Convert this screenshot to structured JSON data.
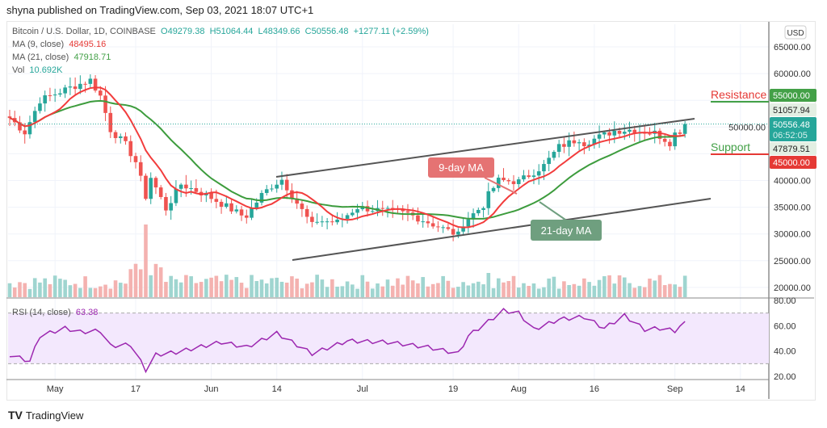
{
  "header": {
    "published": "shyna published on TradingView.com, Sep 03, 2021 18:07 UTC+1"
  },
  "legend": {
    "symbol": "Bitcoin / U.S. Dollar, 1D, COINBASE",
    "open": "O49279.38",
    "high": "H51064.44",
    "low": "L48349.66",
    "close": "C50556.48",
    "change": "+1277.11 (+2.59%)",
    "ma9_label": "MA (9, close)",
    "ma9_value": "48495.16",
    "ma21_label": "MA (21, close)",
    "ma21_value": "47918.71",
    "vol_label": "Vol",
    "vol_value": "10.692K",
    "rsi_label": "RSI (14, close)",
    "rsi_value": "63.38"
  },
  "axis": {
    "currency": "USD",
    "price_ticks": [
      "65000.00",
      "60000.00",
      "55000.00",
      "50000.00",
      "45000.00",
      "40000.00",
      "35000.00",
      "30000.00",
      "25000.00",
      "20000.00"
    ],
    "rsi_ticks": [
      "80.00",
      "60.00",
      "40.00",
      "20.00"
    ],
    "x_ticks": [
      {
        "label": "May",
        "day": 9
      },
      {
        "label": "17",
        "day": 25
      },
      {
        "label": "Jun",
        "day": 40
      },
      {
        "label": "14",
        "day": 53
      },
      {
        "label": "Jul",
        "day": 70
      },
      {
        "label": "19",
        "day": 88
      },
      {
        "label": "Aug",
        "day": 101
      },
      {
        "label": "16",
        "day": 116
      },
      {
        "label": "Sep",
        "day": 132
      },
      {
        "label": "14",
        "day": 145
      }
    ]
  },
  "badges": {
    "resistance": "55000.00",
    "high_mark": "51057.94",
    "last_price": "50556.48",
    "countdown": "06:52:05",
    "low_mark": "47879.51",
    "support": "45000.00"
  },
  "annotations": {
    "resistance": "Resistance",
    "support": "Support",
    "ma9": "9-day MA",
    "ma21": "21-day MA"
  },
  "colors": {
    "up": "#26a69a",
    "down": "#ef5350",
    "ma9": "#f23c3c",
    "ma21": "#3d9c3d",
    "rsi": "#9c27b0",
    "resistance": "#43a047",
    "support": "#e53935"
  },
  "chart_data": {
    "type": "candlestick",
    "start_date": "2021-04-22",
    "title": "Bitcoin / U.S. Dollar, 1D, COINBASE",
    "ylim": [
      17000,
      68000
    ],
    "close_keypoints": [
      [
        0,
        51700
      ],
      [
        3,
        49000
      ],
      [
        6,
        55000
      ],
      [
        11,
        57000
      ],
      [
        16,
        58800
      ],
      [
        18,
        55800
      ],
      [
        20,
        49500
      ],
      [
        23,
        46700
      ],
      [
        25,
        43500
      ],
      [
        27,
        37000
      ],
      [
        28,
        40600
      ],
      [
        31,
        34700
      ],
      [
        34,
        39300
      ],
      [
        39,
        37300
      ],
      [
        46,
        33500
      ],
      [
        47,
        33400
      ],
      [
        50,
        37300
      ],
      [
        52,
        39000
      ],
      [
        54,
        40200
      ],
      [
        57,
        35800
      ],
      [
        60,
        31600
      ],
      [
        61,
        32500
      ],
      [
        65,
        32200
      ],
      [
        69,
        35000
      ],
      [
        75,
        34200
      ],
      [
        79,
        33800
      ],
      [
        84,
        31800
      ],
      [
        89,
        29800
      ],
      [
        90,
        32100
      ],
      [
        94,
        35400
      ],
      [
        95,
        37300
      ],
      [
        97,
        40000
      ],
      [
        101,
        39800
      ],
      [
        106,
        42800
      ],
      [
        109,
        46300
      ],
      [
        113,
        47800
      ],
      [
        114,
        47000
      ],
      [
        120,
        49300
      ],
      [
        123,
        49500
      ],
      [
        128,
        48900
      ],
      [
        131,
        47100
      ],
      [
        132,
        48800
      ],
      [
        133,
        49300
      ],
      [
        134,
        50556
      ]
    ],
    "rsi_keypoints": [
      [
        0,
        37
      ],
      [
        4,
        32
      ],
      [
        6,
        52
      ],
      [
        11,
        58
      ],
      [
        14,
        55
      ],
      [
        18,
        56
      ],
      [
        20,
        44
      ],
      [
        24,
        45
      ],
      [
        27,
        25
      ],
      [
        29,
        37
      ],
      [
        33,
        39
      ],
      [
        42,
        47
      ],
      [
        47,
        43
      ],
      [
        53,
        54
      ],
      [
        60,
        38
      ],
      [
        67,
        48
      ],
      [
        75,
        47
      ],
      [
        83,
        43
      ],
      [
        89,
        38
      ],
      [
        91,
        52
      ],
      [
        98,
        72
      ],
      [
        101,
        70
      ],
      [
        104,
        57
      ],
      [
        109,
        65
      ],
      [
        114,
        67
      ],
      [
        118,
        58
      ],
      [
        122,
        68
      ],
      [
        126,
        57
      ],
      [
        129,
        58
      ],
      [
        132,
        56
      ],
      [
        134,
        63.38
      ]
    ],
    "rsi_band": [
      30,
      70
    ]
  }
}
